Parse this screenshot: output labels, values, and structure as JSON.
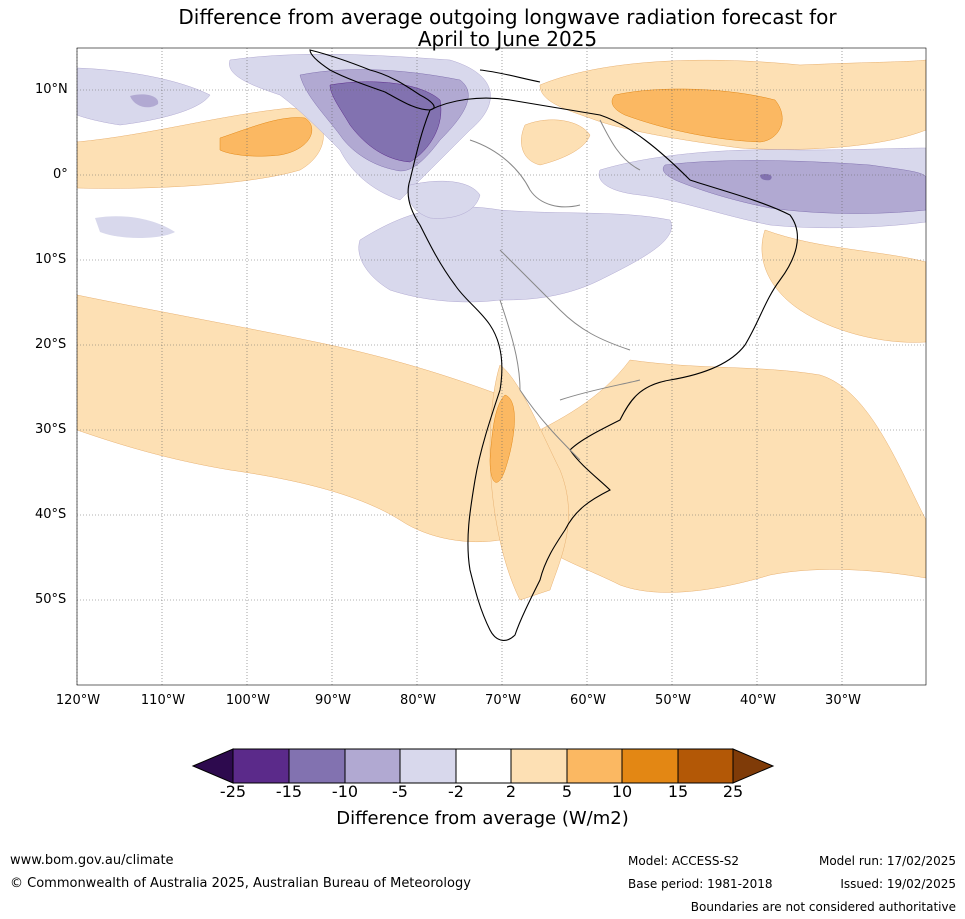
{
  "title": {
    "line1": "Difference from average outgoing longwave radiation forecast for",
    "line2": "April to June 2025"
  },
  "map": {
    "lat_labels": [
      "10°N",
      "0°",
      "10°S",
      "20°S",
      "30°S",
      "40°S",
      "50°S"
    ],
    "lon_labels": [
      "120°W",
      "110°W",
      "100°W",
      "90°W",
      "80°W",
      "70°W",
      "60°W",
      "50°W",
      "40°W",
      "30°W"
    ]
  },
  "colorbar": {
    "ticks": [
      "-25",
      "-15",
      "-10",
      "-5",
      "-2",
      "2",
      "5",
      "10",
      "15",
      "25"
    ],
    "colors": [
      "#2d0a4e",
      "#5b2a8a",
      "#8272b0",
      "#b1a9d2",
      "#d8d8ec",
      "#ffffff",
      "#fde0b4",
      "#fbb862",
      "#e38714",
      "#b35806",
      "#7f3b08"
    ],
    "title": "Difference from average (W/m2)"
  },
  "footer": {
    "url": "www.bom.gov.au/climate",
    "copyright": "© Commonwealth of Australia 2025, Australian Bureau of Meteorology",
    "model": "Model: ACCESS-S2",
    "base_period": "Base period: 1981-2018",
    "model_run": "Model run: 17/02/2025",
    "issued": "Issued: 19/02/2025",
    "disclaimer": "Boundaries are not considered authoritative"
  }
}
